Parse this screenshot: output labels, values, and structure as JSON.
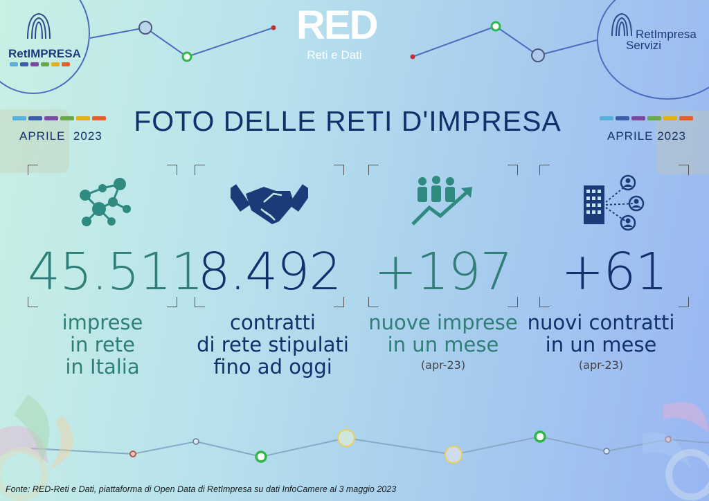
{
  "header": {
    "logo_left": "RetIMPRESA",
    "logo_center_main": "RED",
    "logo_center_sub": "Reti e Dati",
    "logo_right_line1": "RetImpresa",
    "logo_right_line2": "Servizi"
  },
  "title": "FOTO DELLE RETI D'IMPRESA",
  "date_left": "APRILE  2023",
  "date_right": "APRILE 2023",
  "stats": [
    {
      "value": "45.511",
      "label_lines": [
        "imprese",
        "in rete",
        "in Italia"
      ],
      "sub": "",
      "color": "#2f7f78",
      "icon": "network-people-icon"
    },
    {
      "value": "8.492",
      "label_lines": [
        "contratti",
        "di rete stipulati",
        "fino ad oggi"
      ],
      "sub": "",
      "color": "#12306b",
      "icon": "handshake-icon"
    },
    {
      "value": "+197",
      "label_lines": [
        "nuove imprese",
        "in un mese"
      ],
      "sub": "(apr-23)",
      "color": "#2f7f78",
      "icon": "people-growth-icon"
    },
    {
      "value": "+61",
      "label_lines": [
        "nuovi contratti",
        "in un mese"
      ],
      "sub": "(apr-23)",
      "color": "#12306b",
      "icon": "building-network-icon"
    }
  ],
  "footer": "Fonte: RED-Reti e Dati, piattaforma di Open Data di RetImpresa su dati InfoCamere al 3 maggio 2023",
  "colors": {
    "navy": "#12306b",
    "teal": "#2f7f78",
    "strip": [
      "#5ab0d8",
      "#3a5ea8",
      "#7a4aa0",
      "#6aa84f",
      "#e0b020",
      "#e06030"
    ]
  }
}
